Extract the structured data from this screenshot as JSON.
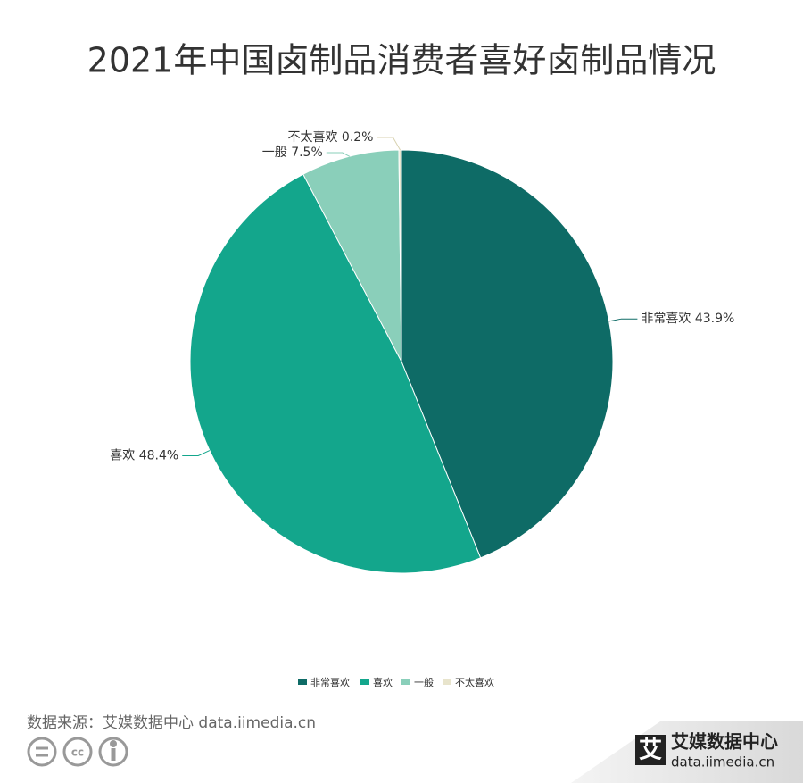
{
  "chart_data": {
    "type": "pie",
    "title": "2021年中国卤制品消费者喜好卤制品情况",
    "categories": [
      "非常喜欢",
      "喜欢",
      "一般",
      "不太喜欢"
    ],
    "values": [
      43.9,
      48.4,
      7.5,
      0.2
    ],
    "value_labels": [
      "43.9%",
      "48.4%",
      "7.5%",
      "0.2%"
    ],
    "colors": [
      "#0e6b66",
      "#13a68c",
      "#8acfba",
      "#e8e4cc"
    ],
    "legend": "bottom"
  },
  "footer": {
    "source": "数据来源：艾媒数据中心 data.iimedia.cn",
    "license_icon": "cc",
    "logo_mark": "艾",
    "logo_name": "艾媒数据中心",
    "logo_url": "data.iimedia.cn"
  }
}
